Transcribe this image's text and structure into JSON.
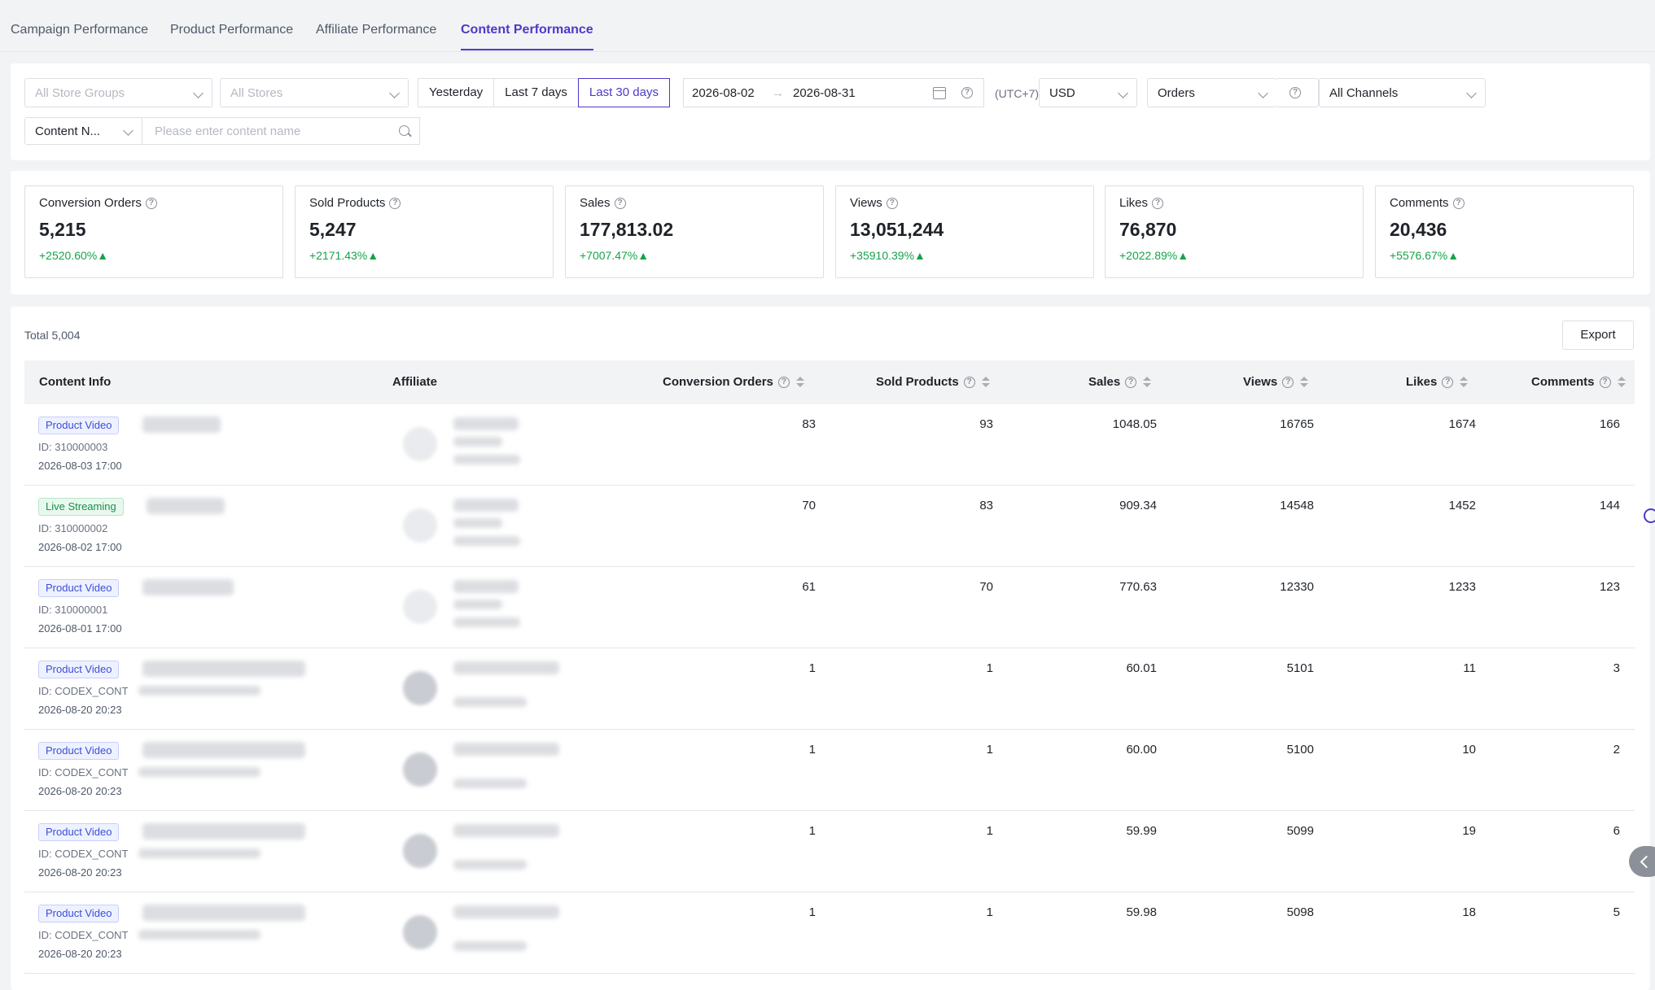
{
  "tabs": [
    {
      "label": "Campaign Performance"
    },
    {
      "label": "Product Performance"
    },
    {
      "label": "Affiliate Performance"
    },
    {
      "label": "Content Performance"
    }
  ],
  "filters": {
    "store_groups_placeholder": "All Store Groups",
    "stores_placeholder": "All Stores",
    "quick_ranges": [
      "Yesterday",
      "Last 7 days",
      "Last 30 days"
    ],
    "active_range": "Last 30 days",
    "date_start": "2026-08-02",
    "date_end": "2026-08-31",
    "date_arrow": "→",
    "timezone": "(UTC+7)",
    "currency": "USD",
    "metric": "Orders",
    "channel": "All Channels",
    "search_type": "Content N...",
    "search_placeholder": "Please enter content name"
  },
  "metrics": [
    {
      "title": "Conversion Orders",
      "value": "5,215",
      "change": "+2520.60%▲"
    },
    {
      "title": "Sold Products",
      "value": "5,247",
      "change": "+2171.43%▲"
    },
    {
      "title": "Sales",
      "value": "177,813.02",
      "change": "+7007.47%▲"
    },
    {
      "title": "Views",
      "value": "13,051,244",
      "change": "+35910.39%▲"
    },
    {
      "title": "Likes",
      "value": "76,870",
      "change": "+2022.89%▲"
    },
    {
      "title": "Comments",
      "value": "20,436",
      "change": "+5576.67%▲"
    }
  ],
  "table": {
    "total": "Total 5,004",
    "export_label": "Export",
    "columns": {
      "content_info": "Content Info",
      "affiliate": "Affiliate",
      "conversion_orders": "Conversion Orders",
      "sold_products": "Sold Products",
      "sales": "Sales",
      "views": "Views",
      "likes": "Likes",
      "comments": "Comments"
    },
    "rows": [
      {
        "type": "Product Video",
        "id": "ID: 310000003",
        "time": "2026-08-03 17:00",
        "orders": "83",
        "sold": "93",
        "sales": "1048.05",
        "views": "16765",
        "likes": "1674",
        "comments": "166"
      },
      {
        "type": "Live Streaming",
        "id": "ID: 310000002",
        "time": "2026-08-02 17:00",
        "orders": "70",
        "sold": "83",
        "sales": "909.34",
        "views": "14548",
        "likes": "1452",
        "comments": "144"
      },
      {
        "type": "Product Video",
        "id": "ID: 310000001",
        "time": "2026-08-01 17:00",
        "orders": "61",
        "sold": "70",
        "sales": "770.63",
        "views": "12330",
        "likes": "1233",
        "comments": "123"
      },
      {
        "type": "Product Video",
        "id": "ID: CODEX_CONTE",
        "time": "2026-08-20 20:23",
        "orders": "1",
        "sold": "1",
        "sales": "60.01",
        "views": "5101",
        "likes": "11",
        "comments": "3"
      },
      {
        "type": "Product Video",
        "id": "ID: CODEX_CONTE",
        "time": "2026-08-20 20:23",
        "orders": "1",
        "sold": "1",
        "sales": "60.00",
        "views": "5100",
        "likes": "10",
        "comments": "2"
      },
      {
        "type": "Product Video",
        "id": "ID: CODEX_CONTE",
        "time": "2026-08-20 20:23",
        "orders": "1",
        "sold": "1",
        "sales": "59.99",
        "views": "5099",
        "likes": "19",
        "comments": "6"
      },
      {
        "type": "Product Video",
        "id": "ID: CODEX_CONTE",
        "time": "2026-08-20 20:23",
        "orders": "1",
        "sold": "1",
        "sales": "59.98",
        "views": "5098",
        "likes": "18",
        "comments": "5"
      }
    ]
  },
  "colors": {
    "accent": "#4b3ac9",
    "positive": "#16a34a"
  },
  "icons": [
    "help-circle-icon",
    "chevron-down-icon",
    "calendar-icon",
    "search-icon",
    "sort-icon",
    "collapse-left-icon"
  ]
}
